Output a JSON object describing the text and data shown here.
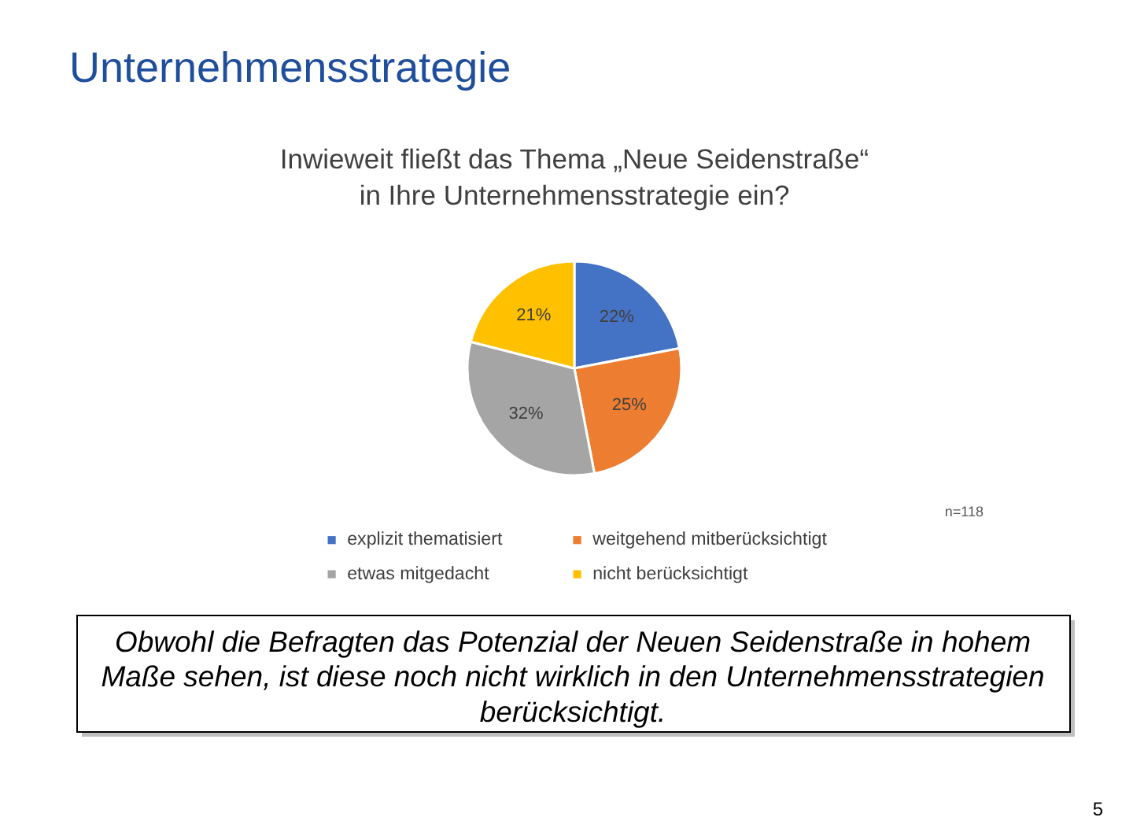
{
  "chart_data": {
    "type": "pie",
    "title": "Unternehmensstrategie",
    "subtitle": "Inwieweit fließt das Thema „Neue Seidenstraße“\nin Ihre Unternehmensstrategie ein?",
    "categories": [
      "explizit thematisiert",
      "weitgehend mitberücksichtigt",
      "etwas mitgedacht",
      "nicht berücksichtigt"
    ],
    "values": [
      22,
      25,
      32,
      21
    ],
    "colors": [
      "#4472c4",
      "#ed7d31",
      "#a5a5a5",
      "#ffc000"
    ],
    "value_labels": [
      "22%",
      "25%",
      "32%",
      "21%"
    ],
    "legend": "bottom",
    "annotations": [
      "n=118",
      "Obwohl die Befragten das Potenzial der Neuen Seidenstraße in hohem\nMaße sehen, ist diese noch nicht wirklich in den Unternehmensstrategien\nberücksichtigt.",
      "5"
    ]
  }
}
